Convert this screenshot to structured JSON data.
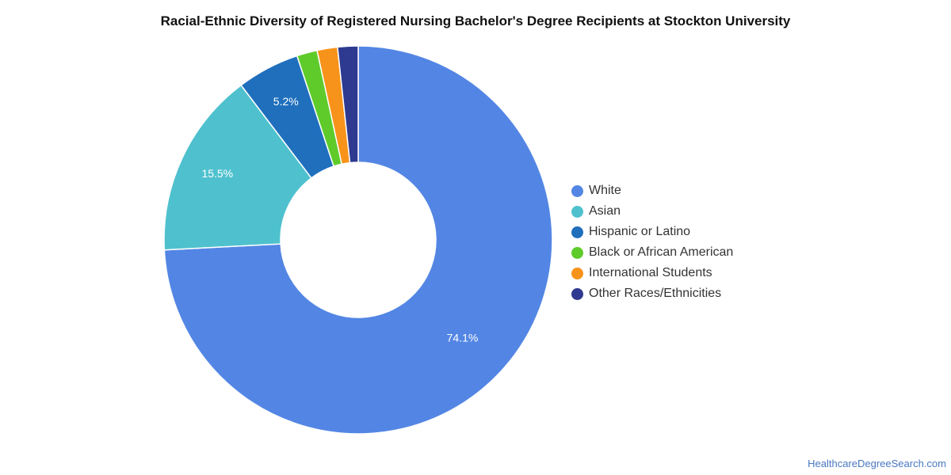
{
  "chart_data": {
    "type": "pie",
    "title": "Racial-Ethnic Diversity of Registered Nursing Bachelor's Degree Recipients at Stockton University",
    "legend_position": "right",
    "donut": true,
    "slices": [
      {
        "label": "White",
        "value": 74.1,
        "display_label": "74.1%",
        "color": "#5386e4"
      },
      {
        "label": "Asian",
        "value": 15.5,
        "display_label": "15.5%",
        "color": "#4fc1ce"
      },
      {
        "label": "Hispanic or Latino",
        "value": 5.2,
        "display_label": "5.2%",
        "color": "#1f6fbd"
      },
      {
        "label": "Black or African American",
        "value": 1.7,
        "display_label": "",
        "color": "#5ecb2b"
      },
      {
        "label": "International Students",
        "value": 1.7,
        "display_label": "",
        "color": "#f7931a"
      },
      {
        "label": "Other Races/Ethnicities",
        "value": 1.7,
        "display_label": "",
        "color": "#2e3a8f"
      }
    ]
  },
  "footer": {
    "source": "HealthcareDegreeSearch.com"
  }
}
